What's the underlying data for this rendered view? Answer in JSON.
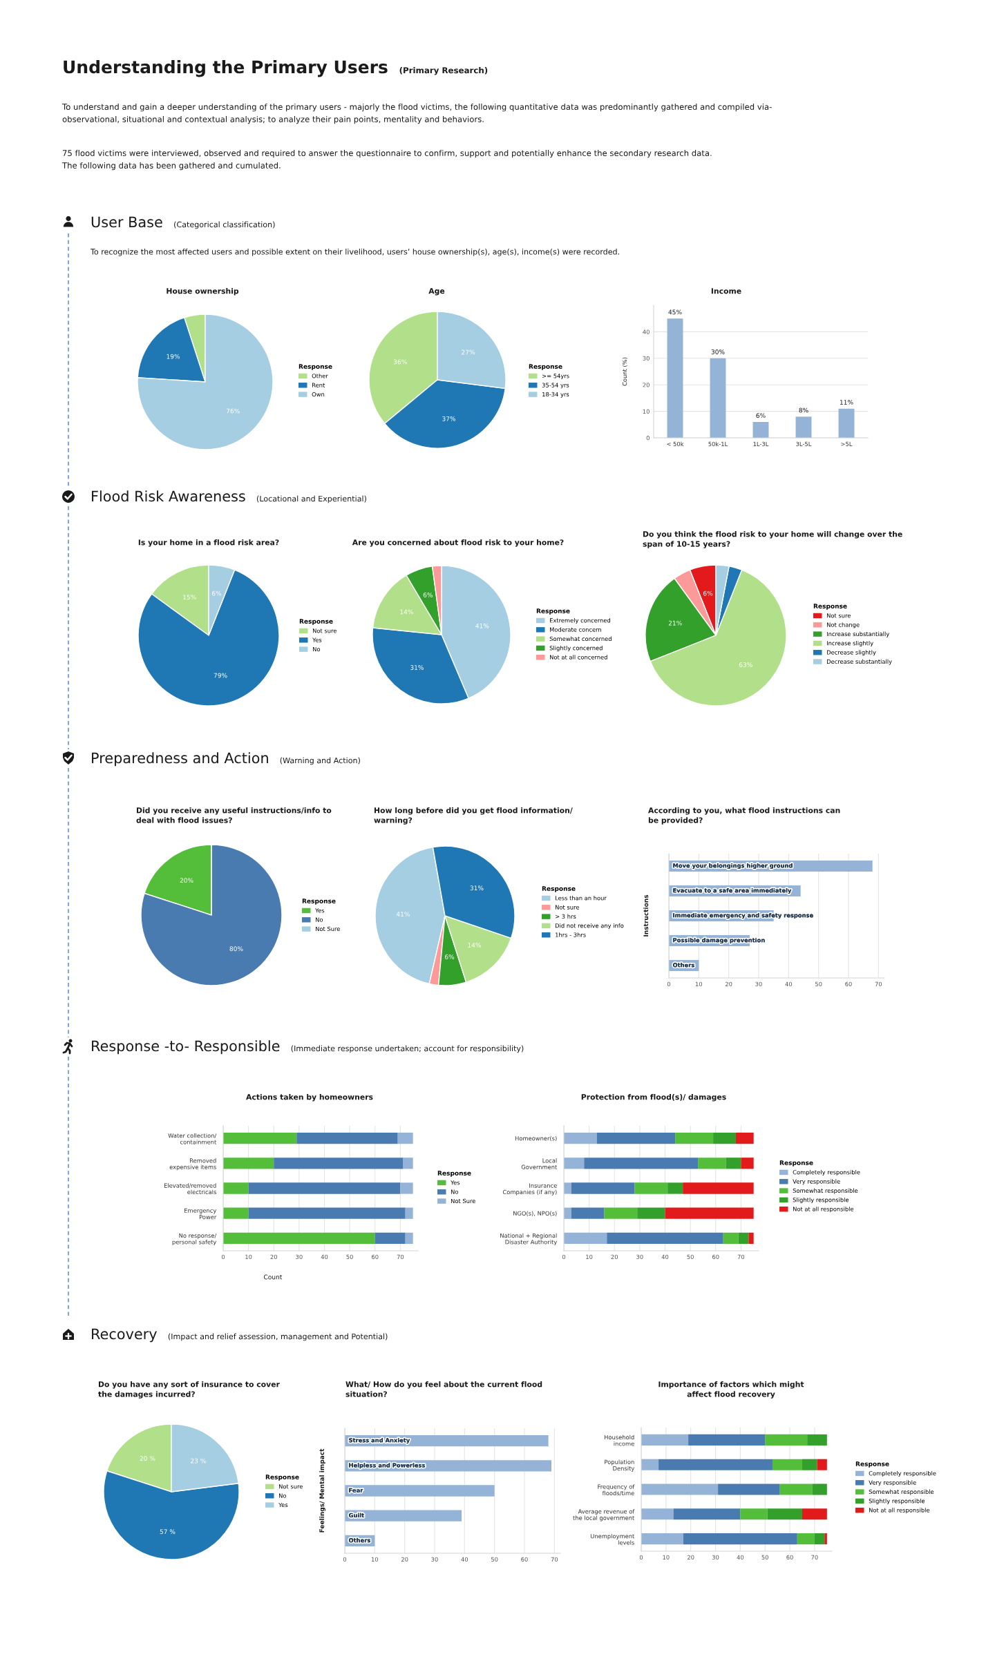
{
  "chart_data": [
    {
      "type": "other",
      "title": "Understanding the Primary Users",
      "subtitle": "(Primary Research)",
      "annotations": [
        "To understand and gain a deeper understanding of the primary users - majorly the flood victims, the following quantitative data was predominantly gathered and compiled via-\nobservational, situational and contextual analysis; to analyze their pain points, mentality and behaviors.",
        "75 flood victims were interviewed, observed and required to answer the questionnaire to confirm, support and potentially enhance the secondary research data.\nThe following data has been gathered and cumulated."
      ]
    },
    {
      "type": "other",
      "title": "User Base",
      "subtitle": "(Categorical classification)",
      "annotations": [
        "To recognize the most affected users and possible extent on their livelihood, users’ house ownership(s), age(s), income(s) were recorded."
      ]
    },
    {
      "type": "pie",
      "title": "House ownership",
      "legend_title": "Response",
      "legend": "right",
      "categories": [
        "Other",
        "Rent",
        "Own"
      ],
      "values": [
        5,
        19,
        76
      ],
      "value_labels": [
        null,
        "19%",
        "76%"
      ],
      "colors": [
        "#b2df8a",
        "#1f78b4",
        "#a6cee3"
      ]
    },
    {
      "type": "pie",
      "title": "Age",
      "legend_title": "Response",
      "legend": "right",
      "categories": [
        ">= 54yrs",
        "35-54 yrs",
        "18-34 yrs"
      ],
      "values": [
        36,
        37,
        27
      ],
      "value_labels": [
        "36%",
        "37%",
        "27%"
      ],
      "colors": [
        "#b2df8a",
        "#1f78b4",
        "#a6cee3"
      ]
    },
    {
      "type": "bar",
      "title": "Income",
      "ylabel": "Count (%)",
      "categories": [
        "< 50k",
        "50k-1L",
        "1L-3L",
        "3L-5L",
        ">5L"
      ],
      "values": [
        45,
        30,
        6,
        8,
        11
      ],
      "value_labels": [
        "45%",
        "30%",
        "6%",
        "8%",
        "11%"
      ],
      "color": "#95b3d7",
      "ylim": [
        0,
        50
      ],
      "yticks": [
        0,
        10,
        20,
        30,
        40
      ],
      "grid": "y"
    },
    {
      "type": "other",
      "title": "Flood Risk Awareness",
      "subtitle": "(Locational and Experiential)"
    },
    {
      "type": "pie",
      "title": "Is your home in a flood risk area?",
      "legend_title": "Response",
      "legend": "right",
      "categories": [
        "Not sure",
        "Yes",
        "No"
      ],
      "values": [
        15,
        79,
        6
      ],
      "value_labels": [
        "15%",
        "79%",
        "6%"
      ],
      "colors": [
        "#b2df8a",
        "#1f78b4",
        "#a6cee3"
      ]
    },
    {
      "type": "pie",
      "title": "Are you concerned about flood risk to your home?",
      "legend_title": "Response",
      "legend": "right",
      "categories": [
        "Extremely concerned",
        "Moderate concern",
        "Somewhat concerned",
        "Slightly concerned",
        "Not at all concerned"
      ],
      "values": [
        41,
        31,
        14,
        6,
        2
      ],
      "value_labels": [
        "41%",
        "31%",
        "14%",
        "6%",
        null
      ],
      "colors": [
        "#a6cee3",
        "#1f78b4",
        "#b2df8a",
        "#33a02c",
        "#fb9a99"
      ]
    },
    {
      "type": "pie",
      "title": "Do you think the flood risk to your home will change over the\nspan of 10-15 years?",
      "legend_title": "Response",
      "legend": "right",
      "categories": [
        "Not sure",
        "Not change",
        "Increase substantially",
        "Increase slightly",
        "Decrease slightly",
        "Decrease substantially"
      ],
      "values": [
        6,
        4,
        21,
        63,
        3,
        3
      ],
      "value_labels": [
        "6%",
        null,
        "21%",
        "63%",
        null,
        null
      ],
      "colors": [
        "#e31a1c",
        "#fb9a99",
        "#33a02c",
        "#b2df8a",
        "#1f78b4",
        "#a6cee3"
      ]
    },
    {
      "type": "other",
      "title": "Preparedness and Action",
      "subtitle": "(Warning and Action)"
    },
    {
      "type": "pie",
      "title": "Did you receive any useful instructions/info to\ndeal with flood issues?",
      "legend_title": "Response",
      "legend": "right",
      "categories": [
        "Yes",
        "No",
        "Not Sure"
      ],
      "values": [
        20,
        80,
        0
      ],
      "value_labels": [
        "20%",
        "80%",
        null
      ],
      "colors": [
        "#54be3b",
        "#4a7bb0",
        "#a6cee3"
      ]
    },
    {
      "type": "pie",
      "title": "How long before did you get flood information/\nwarning?",
      "legend_title": "Response",
      "legend": "right",
      "categories": [
        "Less than an hour",
        "Not sure",
        "> 3 hrs",
        "Did not receive any info",
        "1hrs - 3hrs"
      ],
      "values": [
        41,
        2,
        6,
        14,
        31
      ],
      "value_labels": [
        "41%",
        null,
        "6%",
        "14%",
        "31%"
      ],
      "colors": [
        "#a6cee3",
        "#fb9a99",
        "#33a02c",
        "#b2df8a",
        "#1f78b4"
      ]
    },
    {
      "type": "bar",
      "orientation": "horizontal",
      "title": "According to you, what flood instructions can\nbe provided?",
      "ylabel": "Instructions",
      "categories": [
        "Move your belongings higher ground",
        "Evacuate to a safe area immediately",
        "Immediate emergency and safety response",
        "Possible damage prevention",
        "Others"
      ],
      "values": [
        68,
        44,
        35,
        27,
        10
      ],
      "color": "#95b3d7",
      "xlim": [
        0,
        72
      ],
      "xticks": [
        0,
        10,
        20,
        30,
        40,
        50,
        60,
        70
      ],
      "grid": "x"
    },
    {
      "type": "other",
      "title": "Response -to- Responsible",
      "subtitle": "(Immediate response undertaken; account for responsibility)"
    },
    {
      "type": "bar",
      "orientation": "horizontal",
      "stacked": true,
      "title": "Actions taken by homeowners",
      "xlabel": "Count",
      "legend_title": "Response",
      "legend": "right",
      "categories": [
        "Water collection/\ncontainment",
        "Removed\nexpensive items",
        "Elevated/removed\nelectricals",
        "Emergency\nPower",
        "No response/\npersonal safety"
      ],
      "series": [
        {
          "name": "Yes",
          "color": "#54be3b",
          "values": [
            29,
            20,
            10,
            10,
            60
          ]
        },
        {
          "name": "No",
          "color": "#4a7bb0",
          "values": [
            40,
            51,
            60,
            62,
            12
          ]
        },
        {
          "name": "Not Sure",
          "color": "#95b3d7",
          "values": [
            6,
            4,
            5,
            3,
            3
          ]
        }
      ],
      "xlim": [
        0,
        77
      ],
      "xticks": [
        0,
        10,
        20,
        30,
        40,
        50,
        60,
        70
      ],
      "grid": "x"
    },
    {
      "type": "bar",
      "orientation": "horizontal",
      "stacked": true,
      "title": "Protection from flood(s)/ damages",
      "legend_title": "Response",
      "legend": "right",
      "categories": [
        "Homeowner(s)",
        "Local\nGovernment",
        "Insurance\nCompanies (if any)",
        "NGO(s), NPO(s)",
        "National + Regional\nDisaster Authority"
      ],
      "series": [
        {
          "name": "Completely responsible",
          "color": "#95b3d7",
          "values": [
            13,
            8,
            3,
            3,
            17
          ]
        },
        {
          "name": "Very responsible",
          "color": "#4a7bb0",
          "values": [
            31,
            45,
            25,
            13,
            46
          ]
        },
        {
          "name": "Somewhat responsible",
          "color": "#54be3b",
          "values": [
            15,
            11,
            13,
            13,
            6
          ]
        },
        {
          "name": "Slightly responsible",
          "color": "#33a02c",
          "values": [
            9,
            6,
            6,
            11,
            4
          ]
        },
        {
          "name": "Not at all responsible",
          "color": "#e31a1c",
          "values": [
            7,
            5,
            28,
            35,
            2
          ]
        }
      ],
      "xlim": [
        0,
        77
      ],
      "xticks": [
        0,
        10,
        20,
        30,
        40,
        50,
        60,
        70
      ],
      "grid": "x"
    },
    {
      "type": "other",
      "title": "Recovery",
      "subtitle": "(Impact and relief assession, management and Potential)"
    },
    {
      "type": "pie",
      "title": "Do you have any sort of insurance to cover\nthe damages incurred?",
      "legend_title": "Response",
      "legend": "right",
      "categories": [
        "Not sure",
        "No",
        "Yes"
      ],
      "values": [
        20,
        57,
        23
      ],
      "value_labels": [
        "20 %",
        "57 %",
        "23 %"
      ],
      "colors": [
        "#b2df8a",
        "#1f78b4",
        "#a6cee3"
      ]
    },
    {
      "type": "bar",
      "orientation": "horizontal",
      "title": "What/ How do you feel about the current flood\nsituation?",
      "ylabel": "Feelings/ Mental impact",
      "categories": [
        "Stress and Anxiety",
        "Helpless and Powerless",
        "Fear",
        "Guilt",
        "Others"
      ],
      "values": [
        68,
        69,
        50,
        39,
        10
      ],
      "color": "#95b3d7",
      "xlim": [
        0,
        72
      ],
      "xticks": [
        0,
        10,
        20,
        30,
        40,
        50,
        60,
        70
      ],
      "grid": "x"
    },
    {
      "type": "bar",
      "orientation": "horizontal",
      "stacked": true,
      "title": "Importance of factors which might\naffect flood recovery",
      "legend_title": "Response",
      "legend": "right",
      "categories": [
        "Household\nincome",
        "Population\nDensity",
        "Frequency of\nfloods/time",
        "Average revenue of\nthe local government",
        "Unemployment\nlevels"
      ],
      "series": [
        {
          "name": "Completely responsible",
          "color": "#95b3d7",
          "values": [
            19,
            7,
            31,
            13,
            17
          ]
        },
        {
          "name": "Very responsible",
          "color": "#4a7bb0",
          "values": [
            31,
            46,
            25,
            27,
            46
          ]
        },
        {
          "name": "Somewhat responsible",
          "color": "#54be3b",
          "values": [
            17,
            12,
            13,
            11,
            7
          ]
        },
        {
          "name": "Slightly responsible",
          "color": "#33a02c",
          "values": [
            8,
            6,
            6,
            14,
            4
          ]
        },
        {
          "name": "Not at all responsible",
          "color": "#e31a1c",
          "values": [
            0,
            4,
            0,
            10,
            1
          ]
        }
      ],
      "xlim": [
        0,
        77
      ],
      "xticks": [
        0,
        10,
        20,
        30,
        40,
        50,
        60,
        70
      ],
      "grid": "x"
    }
  ]
}
